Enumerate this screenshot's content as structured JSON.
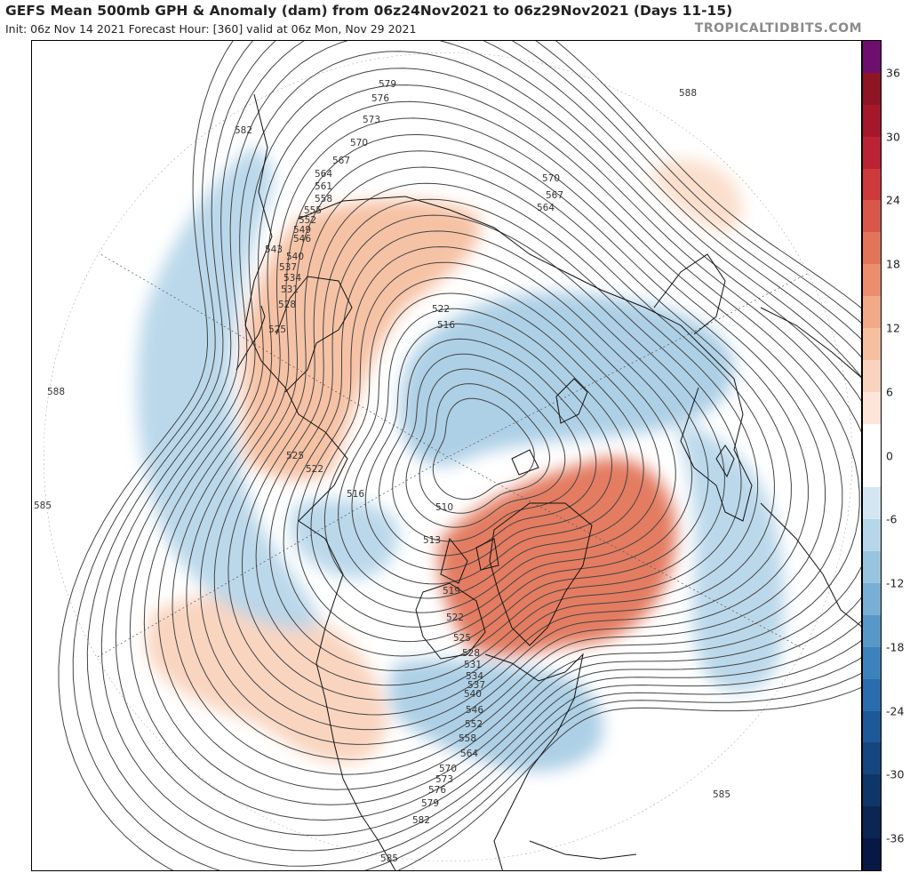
{
  "header": {
    "title": "GEFS Mean 500mb GPH & Anomaly (dam) from 06z24Nov2021 to 06z29Nov2021 (Days 11-15)",
    "subtitle": "Init: 06z Nov 14 2021   Forecast Hour: [360]   valid at 06z Mon, Nov 29 2021",
    "source": "TROPICALTIDBITS.COM"
  },
  "colorbar": {
    "labels": [
      "36",
      "30",
      "24",
      "18",
      "12",
      "6",
      "0",
      "-6",
      "-12",
      "-18",
      "-24",
      "-30",
      "-36"
    ],
    "segments": [
      {
        "min": 36,
        "max": 39,
        "color": "#6e0f6e"
      },
      {
        "min": 33,
        "max": 36,
        "color": "#8e1524"
      },
      {
        "min": 30,
        "max": 33,
        "color": "#a5182c"
      },
      {
        "min": 27,
        "max": 30,
        "color": "#bb2233"
      },
      {
        "min": 24,
        "max": 27,
        "color": "#cc3a3c"
      },
      {
        "min": 21,
        "max": 24,
        "color": "#d9574a"
      },
      {
        "min": 18,
        "max": 21,
        "color": "#e27559"
      },
      {
        "min": 15,
        "max": 18,
        "color": "#ea8e6e"
      },
      {
        "min": 12,
        "max": 15,
        "color": "#f1a987"
      },
      {
        "min": 9,
        "max": 12,
        "color": "#f5bfa0"
      },
      {
        "min": 6,
        "max": 9,
        "color": "#f9d3bd"
      },
      {
        "min": 3,
        "max": 6,
        "color": "#fde6d9"
      },
      {
        "min": -3,
        "max": 3,
        "color": "#ffffff"
      },
      {
        "min": -6,
        "max": -3,
        "color": "#d4e6f1"
      },
      {
        "min": -9,
        "max": -6,
        "color": "#b7d6ea"
      },
      {
        "min": -12,
        "max": -9,
        "color": "#99c4e0"
      },
      {
        "min": -15,
        "max": -12,
        "color": "#79afd5"
      },
      {
        "min": -18,
        "max": -15,
        "color": "#5898c9"
      },
      {
        "min": -21,
        "max": -18,
        "color": "#3d82bd"
      },
      {
        "min": -24,
        "max": -21,
        "color": "#2a6cae"
      },
      {
        "min": -27,
        "max": -24,
        "color": "#1d5898"
      },
      {
        "min": -30,
        "max": -27,
        "color": "#15467f"
      },
      {
        "min": -33,
        "max": -30,
        "color": "#0f3668"
      },
      {
        "min": -36,
        "max": -33,
        "color": "#0b2652"
      },
      {
        "min": -39,
        "max": -36,
        "color": "#081845"
      }
    ],
    "range": [
      -39,
      39
    ]
  },
  "contour_labels": [
    "579",
    "576",
    "573",
    "570",
    "567",
    "564",
    "561",
    "558",
    "555",
    "552",
    "549",
    "546",
    "543",
    "540",
    "537",
    "534",
    "531",
    "528",
    "525",
    "522",
    "516",
    "510",
    "513",
    "519",
    "588",
    "585",
    "582",
    "570",
    "567",
    "564",
    "525",
    "522",
    "516"
  ],
  "map": {
    "anomalies": [
      {
        "id": "east-asia-positive",
        "value": 8,
        "color": "#f5bfa0"
      },
      {
        "id": "greenland-positive",
        "value": 18,
        "color": "#e27559"
      },
      {
        "id": "western-us-positive",
        "value": 6,
        "color": "#f9d3bd"
      },
      {
        "id": "scandinavia-positive",
        "value": 6,
        "color": "#fbdcc9"
      },
      {
        "id": "pacific-arc-negative",
        "value": -8,
        "color": "#b7d6ea"
      },
      {
        "id": "siberia-negative",
        "value": -9,
        "color": "#a9cde5"
      },
      {
        "id": "eastern-us-negative",
        "value": -9,
        "color": "#a9cde5"
      },
      {
        "id": "atlantic-negative",
        "value": -7,
        "color": "#b7d6ea"
      },
      {
        "id": "alaska-negative",
        "value": -7,
        "color": "#b7d6ea"
      }
    ]
  },
  "colors": {
    "contour": "#444444",
    "coast": "#111111",
    "grid": "#555555"
  }
}
